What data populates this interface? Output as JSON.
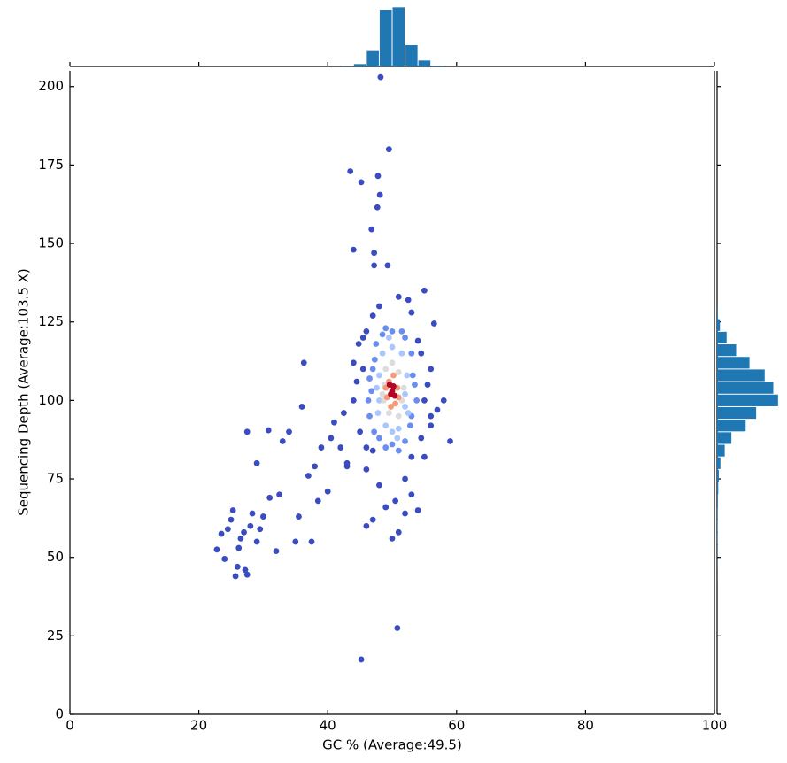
{
  "chart_data": [
    {
      "type": "scatter",
      "xlabel": "GC % (Average:49.5)",
      "ylabel": "Sequencing Depth (Average:103.5 X)",
      "xlim": [
        0,
        100
      ],
      "ylim": [
        0,
        205
      ],
      "xticks": [
        0,
        20,
        40,
        60,
        80,
        100
      ],
      "yticks": [
        0,
        25,
        50,
        75,
        100,
        125,
        150,
        175,
        200
      ],
      "series": [
        {
          "color": "#3b4cc0",
          "x": [
            48.2,
            49.5,
            43.5,
            45.2,
            47.8,
            48.1,
            47.7,
            46.8,
            44,
            47.2,
            49.3,
            47.2,
            50.8,
            45.2,
            22.8,
            23.5,
            24,
            24.5,
            25,
            25.3,
            25.7,
            26,
            26.2,
            26.5,
            27,
            27.5,
            27.2,
            28,
            28.3,
            29,
            29.5,
            30,
            31,
            32,
            32.5,
            27.5,
            29,
            30.8,
            33,
            34,
            35,
            35.5,
            36,
            36.3,
            37,
            37.5,
            38,
            38.5,
            39,
            40,
            40.5,
            41,
            42,
            43,
            44,
            44.5,
            45.5,
            46,
            47,
            48,
            49,
            50,
            50.5,
            51,
            52,
            53,
            54,
            55,
            56,
            57,
            58,
            59,
            55,
            52.5,
            53,
            47,
            46,
            56.5,
            54,
            48,
            51,
            44,
            42.5,
            46,
            52,
            54.5,
            56,
            43,
            45,
            45.5,
            55,
            55.5,
            56,
            44.8,
            46,
            54.5,
            47,
            53
          ],
          "y": [
            203,
            180,
            173,
            169.5,
            171.5,
            165.5,
            161.5,
            154.5,
            148,
            147,
            143,
            143,
            27.5,
            17.5,
            52.5,
            57.5,
            49.5,
            59,
            62,
            65,
            44,
            47,
            53,
            56,
            58,
            44.5,
            46,
            60,
            64,
            55,
            59,
            63,
            69,
            52,
            70,
            90,
            80,
            90.5,
            87,
            90,
            55,
            63,
            98,
            112,
            76,
            55,
            79,
            68,
            85,
            71,
            88,
            93,
            85,
            79,
            100,
            106,
            120,
            60,
            62,
            73,
            66,
            56,
            68,
            58,
            64,
            70,
            65,
            82,
            92,
            97,
            100,
            87,
            135,
            132,
            128,
            127,
            122,
            124.5,
            119,
            130,
            133,
            112,
            96,
            78,
            75,
            88,
            110,
            80,
            90,
            110,
            100,
            105,
            95,
            118,
            85,
            115,
            84,
            82
          ]
        },
        {
          "color": "#6b8df0",
          "x": [
            46.5,
            47,
            47.5,
            48,
            49,
            50,
            51,
            52,
            53,
            53.5,
            53,
            52,
            50,
            48.5,
            46.8,
            47.2,
            52.8,
            47.3,
            46.3,
            53.8,
            49,
            51.5,
            46.5,
            53.2
          ],
          "y": [
            95,
            110,
            118,
            88,
            85,
            86,
            84,
            87,
            95,
            105,
            115,
            120,
            122,
            121,
            103,
            90,
            92,
            113,
            100,
            100,
            123,
            122,
            107,
            108
          ]
        },
        {
          "color": "#aac7fd",
          "x": [
            47.8,
            48,
            48.5,
            49,
            50,
            51,
            52,
            52.3,
            51.5,
            50,
            48,
            52,
            47.6,
            52.5,
            49.5,
            50.8
          ],
          "y": [
            96,
            108,
            115,
            92,
            90,
            91,
            98,
            108,
            115,
            117,
            100,
            102,
            104,
            96,
            120,
            88
          ]
        },
        {
          "color": "#dddcdc",
          "x": [
            48.7,
            49,
            50,
            51,
            51.5,
            51,
            49.5,
            48.8,
            48.5,
            51.8
          ],
          "y": [
            100,
            110,
            112,
            109,
            100,
            95,
            96,
            105,
            102,
            104
          ]
        },
        {
          "color": "#f49a7b",
          "x": [
            49.2,
            49.5,
            50.2,
            50.8,
            50.5,
            49.8,
            49,
            51
          ],
          "y": [
            101,
            106,
            108,
            104,
            99,
            98,
            104,
            101
          ]
        },
        {
          "color": "#b40426",
          "x": [
            49.8,
            50.2,
            50,
            49.6,
            50.4
          ],
          "y": [
            102,
            104.5,
            103,
            105,
            101.5
          ]
        }
      ]
    },
    {
      "type": "histogram",
      "orientation": "vertical",
      "color": "#1f77b4",
      "bins": [
        42,
        44,
        46,
        48,
        50,
        52,
        54,
        56,
        58
      ],
      "values": [
        5,
        40,
        260,
        960,
        1000,
        360,
        100,
        10
      ],
      "ylim": [
        0,
        1050
      ]
    },
    {
      "type": "histogram",
      "orientation": "horizontal",
      "color": "#1f77b4",
      "bins": [
        42,
        46,
        50,
        54,
        58,
        62,
        66,
        70,
        74,
        78,
        82,
        86,
        90,
        94,
        98,
        102,
        106,
        110,
        114,
        118,
        122,
        126,
        130
      ],
      "values": [
        1,
        2,
        3,
        4,
        5,
        6,
        8,
        12,
        18,
        35,
        80,
        150,
        300,
        410,
        640,
        590,
        500,
        340,
        200,
        100,
        30,
        8
      ],
      "xlim": [
        0,
        660
      ]
    }
  ]
}
